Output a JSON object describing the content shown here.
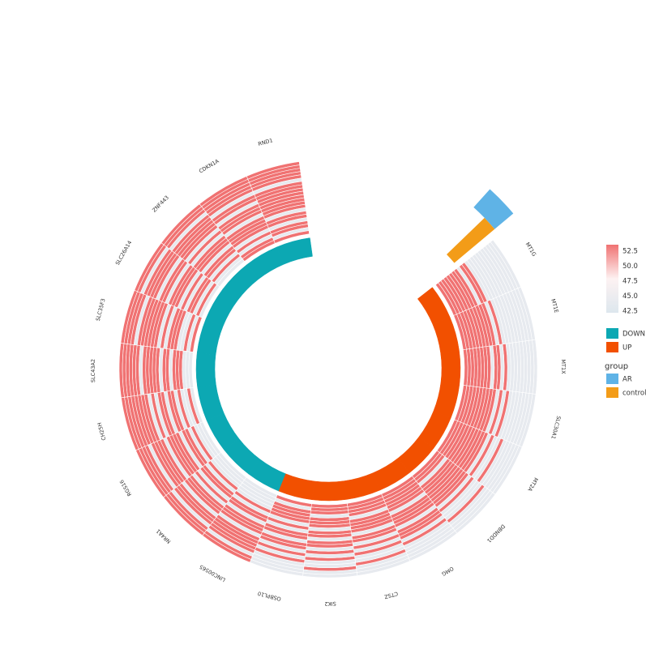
{
  "chart_data": {
    "type": "heatmap",
    "layout": "circular",
    "genes": [
      "RND1",
      "CDKN1A",
      "ZNF443",
      "SLC26A14",
      "SLC35F3",
      "SLC43A2",
      "CH25H",
      "RGS16",
      "NR4A1",
      "LINC00565",
      "OSBPL10",
      "SIK2",
      "CTSZ",
      "OMG",
      "DBNDD1",
      "MT2A",
      "SLC30A1",
      "MT1X",
      "MT1E",
      "MT1G"
    ],
    "direction": [
      "DOWN",
      "DOWN",
      "DOWN",
      "DOWN",
      "DOWN",
      "DOWN",
      "DOWN",
      "DOWN",
      "DOWN",
      "DOWN",
      "UP",
      "UP",
      "UP",
      "UP",
      "UP",
      "UP",
      "UP",
      "UP",
      "UP",
      "UP"
    ],
    "samples_group": [
      "AR",
      "AR",
      "AR",
      "AR",
      "AR",
      "AR",
      "AR",
      "AR",
      "AR",
      "AR",
      "control",
      "control",
      "control",
      "control",
      "control",
      "control",
      "control",
      "control",
      "control",
      "control",
      "control",
      "control"
    ],
    "value_range": [
      42.5,
      52.5
    ],
    "values": [
      [
        53,
        53,
        53,
        53,
        53,
        44,
        53,
        53,
        53,
        53,
        53,
        53,
        53,
        53,
        44,
        53,
        53,
        44,
        53,
        53,
        44,
        53
      ],
      [
        53,
        53,
        53,
        53,
        53,
        44,
        53,
        53,
        44,
        53,
        53,
        53,
        44,
        53,
        53,
        53,
        53,
        44,
        53,
        44,
        53,
        53
      ],
      [
        53,
        53,
        53,
        44,
        53,
        53,
        53,
        53,
        53,
        44,
        53,
        44,
        53,
        53,
        53,
        44,
        53,
        53,
        44,
        53,
        44,
        44
      ],
      [
        53,
        53,
        44,
        53,
        53,
        53,
        53,
        44,
        53,
        53,
        44,
        53,
        53,
        53,
        44,
        53,
        44,
        53,
        53,
        44,
        53,
        44
      ],
      [
        53,
        53,
        53,
        53,
        44,
        53,
        53,
        53,
        53,
        53,
        53,
        44,
        53,
        44,
        53,
        53,
        53,
        44,
        44,
        53,
        44,
        53
      ],
      [
        53,
        53,
        53,
        53,
        53,
        53,
        44,
        53,
        53,
        53,
        53,
        53,
        44,
        53,
        53,
        44,
        53,
        53,
        53,
        44,
        44,
        44
      ],
      [
        53,
        53,
        53,
        53,
        53,
        53,
        53,
        53,
        44,
        53,
        44,
        53,
        53,
        44,
        53,
        53,
        44,
        53,
        44,
        44,
        53,
        44
      ],
      [
        53,
        53,
        53,
        53,
        44,
        53,
        53,
        53,
        53,
        44,
        53,
        53,
        53,
        53,
        44,
        53,
        53,
        44,
        53,
        44,
        44,
        44
      ],
      [
        53,
        53,
        53,
        44,
        53,
        53,
        53,
        44,
        53,
        53,
        53,
        44,
        53,
        44,
        53,
        53,
        44,
        53,
        44,
        44,
        44,
        44
      ],
      [
        53,
        53,
        44,
        53,
        53,
        53,
        53,
        53,
        44,
        53,
        53,
        53,
        44,
        53,
        53,
        44,
        53,
        44,
        44,
        44,
        44,
        44
      ],
      [
        44,
        44,
        44,
        44,
        53,
        44,
        53,
        44,
        53,
        53,
        44,
        53,
        53,
        44,
        53,
        44,
        53,
        53,
        53,
        53,
        44,
        53
      ],
      [
        44,
        44,
        53,
        44,
        44,
        53,
        44,
        53,
        44,
        53,
        53,
        44,
        53,
        53,
        44,
        53,
        53,
        53,
        44,
        53,
        53,
        53
      ],
      [
        44,
        44,
        44,
        53,
        44,
        44,
        53,
        44,
        53,
        44,
        53,
        53,
        44,
        53,
        53,
        53,
        53,
        44,
        53,
        53,
        53,
        53
      ],
      [
        44,
        44,
        44,
        44,
        44,
        53,
        44,
        53,
        53,
        53,
        44,
        53,
        53,
        53,
        53,
        44,
        53,
        53,
        53,
        53,
        53,
        53
      ],
      [
        44,
        44,
        44,
        44,
        53,
        44,
        44,
        44,
        53,
        44,
        53,
        53,
        53,
        53,
        53,
        53,
        53,
        53,
        44,
        53,
        53,
        53
      ],
      [
        44,
        44,
        44,
        44,
        44,
        44,
        53,
        44,
        44,
        53,
        44,
        53,
        53,
        53,
        53,
        53,
        53,
        53,
        53,
        53,
        53,
        53
      ],
      [
        44,
        44,
        44,
        44,
        44,
        44,
        44,
        44,
        53,
        44,
        53,
        44,
        53,
        53,
        53,
        53,
        53,
        53,
        53,
        53,
        53,
        53
      ],
      [
        44,
        44,
        44,
        44,
        44,
        44,
        44,
        44,
        44,
        53,
        44,
        53,
        53,
        44,
        53,
        53,
        53,
        53,
        53,
        53,
        53,
        53
      ],
      [
        44,
        44,
        44,
        44,
        44,
        44,
        44,
        44,
        44,
        44,
        53,
        44,
        53,
        53,
        53,
        53,
        53,
        53,
        53,
        53,
        53,
        53
      ],
      [
        44,
        44,
        44,
        44,
        44,
        44,
        44,
        44,
        44,
        44,
        44,
        53,
        53,
        44,
        53,
        53,
        53,
        53,
        53,
        53,
        53,
        53
      ]
    ],
    "legend": {
      "ticks": [
        "52.5",
        "50.0",
        "47.5",
        "45.0",
        "42.5"
      ],
      "direction_items": [
        {
          "label": "DOWN",
          "color": "#0ca8b3"
        },
        {
          "label": "UP",
          "color": "#f25000"
        }
      ],
      "group_title": "group",
      "group_items": [
        {
          "label": "AR",
          "color": "#5fb3e6"
        },
        {
          "label": "control",
          "color": "#f39c18"
        }
      ]
    },
    "colors": {
      "low": "#dde7ee",
      "mid": "#fdf2f2",
      "high": "#f07272"
    }
  }
}
